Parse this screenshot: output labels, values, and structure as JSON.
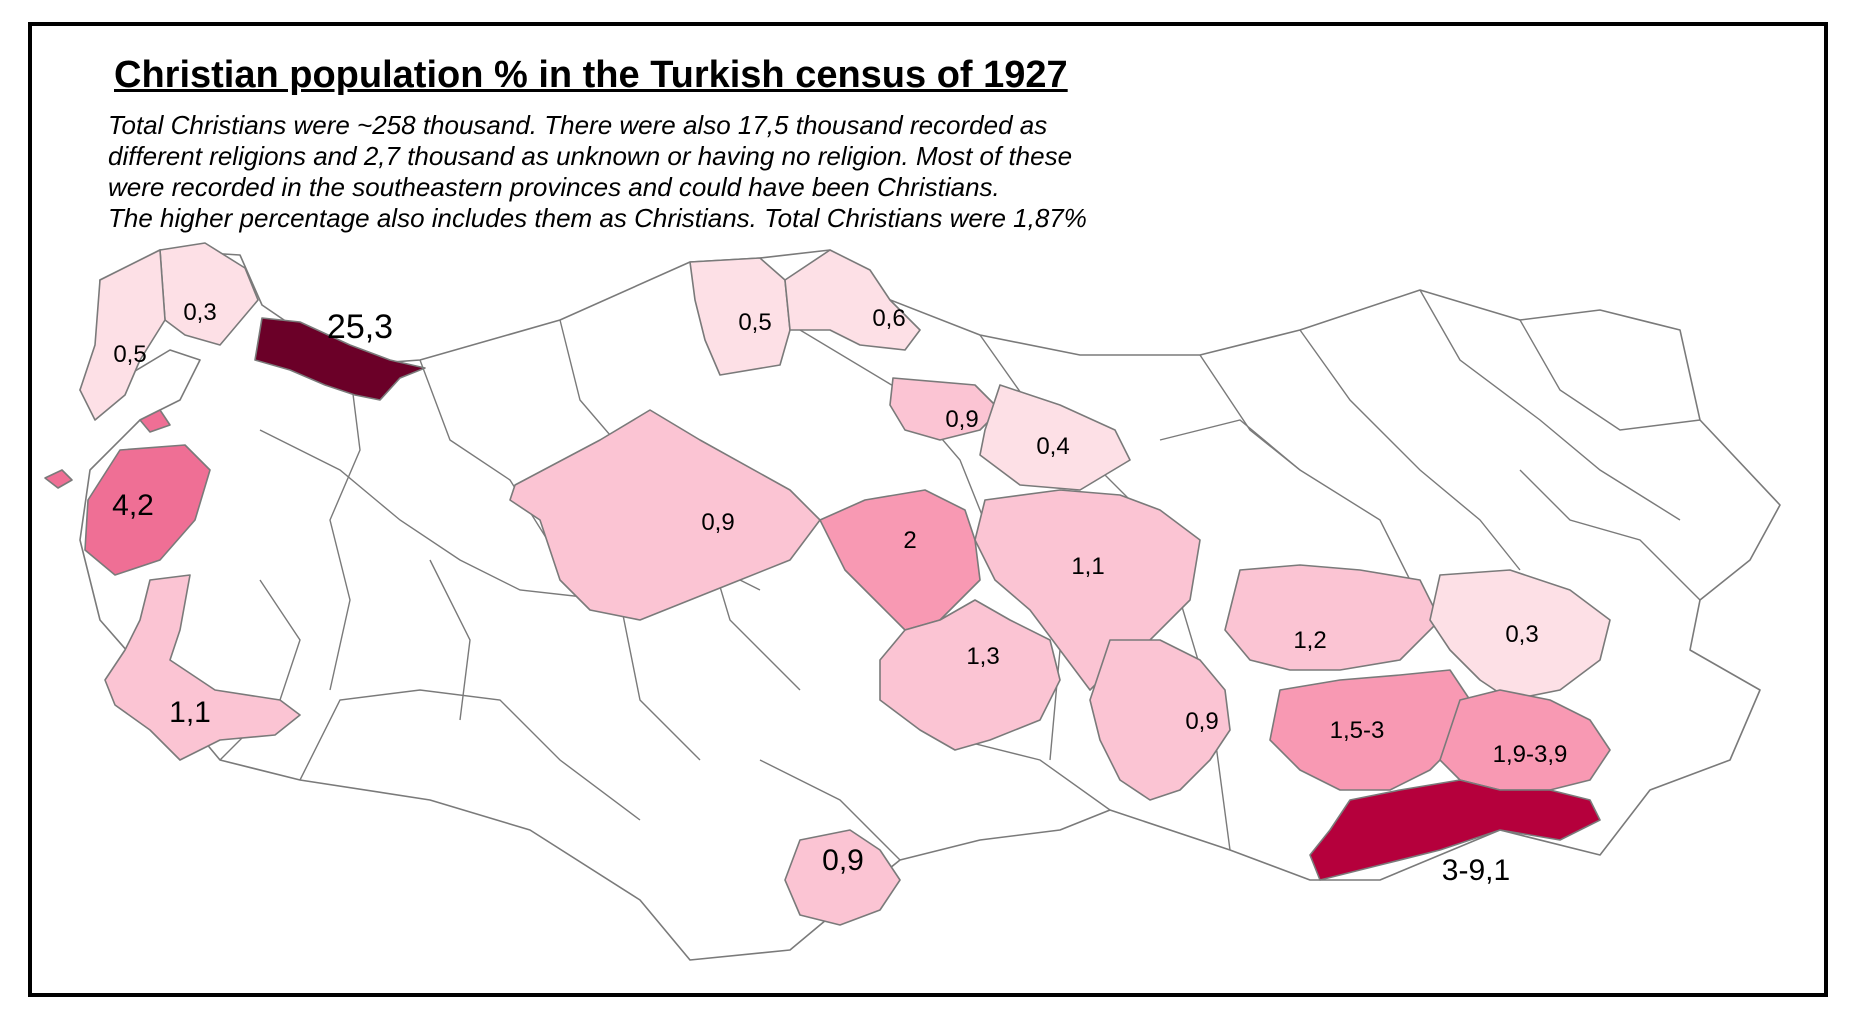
{
  "title": "Christian population % in the Turkish census of 1927",
  "note": [
    "Total Christians were ~258 thousand. There were also 17,5 thousand recorded as",
    "different religions and 2,7 thousand as unknown or having no religion. Most of these",
    "were recorded in the southeastern provinces and could have been Christians.",
    "The higher percentage also includes them as Christians. Total Christians were 1,87%"
  ],
  "colors": {
    "background": "#ffffff",
    "border": "#000000",
    "province_outline": "#7a7a7a",
    "no_data": "#ffffff",
    "very_light": "#fde0e6",
    "light": "#fbc4d3",
    "medium": "#f899b3",
    "strong": "#ef6f95",
    "deep": "#b5003c",
    "darkest": "#6b0028"
  },
  "provinces": [
    {
      "label": "0,3",
      "color": "very_light"
    },
    {
      "label": "0,5",
      "color": "very_light"
    },
    {
      "label": "25,3",
      "color": "darkest"
    },
    {
      "label": "4,2",
      "color": "strong"
    },
    {
      "label": "1,1",
      "color": "light"
    },
    {
      "label": "0,5",
      "color": "very_light"
    },
    {
      "label": "0,6",
      "color": "very_light"
    },
    {
      "label": "0,9",
      "color": "light"
    },
    {
      "label": "0,4",
      "color": "very_light"
    },
    {
      "label": "0,9",
      "color": "light"
    },
    {
      "label": "2",
      "color": "medium"
    },
    {
      "label": "1,1",
      "color": "light"
    },
    {
      "label": "1,3",
      "color": "light"
    },
    {
      "label": "1,2",
      "color": "light"
    },
    {
      "label": "0,3",
      "color": "very_light"
    },
    {
      "label": "0,9",
      "color": "light"
    },
    {
      "label": "1,5-3",
      "color": "medium"
    },
    {
      "label": "1,9-3,9",
      "color": "medium"
    },
    {
      "label": "3-9,1",
      "color": "deep"
    },
    {
      "label": "0,9",
      "color": "light"
    }
  ]
}
